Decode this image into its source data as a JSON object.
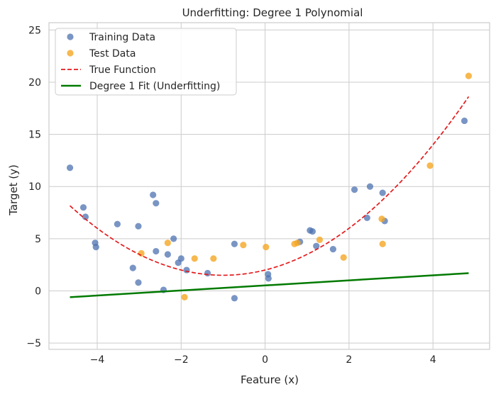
{
  "chart_data": {
    "type": "scatter",
    "title": "Underfitting: Degree 1 Polynomial",
    "xlabel": "Feature (x)",
    "ylabel": "Target (y)",
    "xlim": [
      -5.15,
      5.35
    ],
    "ylim": [
      -5.6,
      25.7
    ],
    "x_ticks": [
      -4,
      -2,
      0,
      2,
      4
    ],
    "y_ticks": [
      -5,
      0,
      5,
      10,
      15,
      20,
      25
    ],
    "grid": true,
    "legend_position": "top-left",
    "colors": {
      "training": "#4c72b0",
      "test": "#f5a623",
      "true_function": "#e41a1c",
      "fit": "#007a00",
      "grid": "#cccccc",
      "axes": "#cccccc"
    },
    "series": [
      {
        "name": "Training Data",
        "kind": "scatter",
        "points": [
          [
            -4.65,
            11.8
          ],
          [
            -4.33,
            8.0
          ],
          [
            -4.28,
            7.1
          ],
          [
            -4.05,
            4.6
          ],
          [
            -4.03,
            4.2
          ],
          [
            -3.52,
            6.4
          ],
          [
            -3.15,
            2.2
          ],
          [
            -3.02,
            6.2
          ],
          [
            -3.02,
            0.8
          ],
          [
            -2.67,
            9.2
          ],
          [
            -2.6,
            3.8
          ],
          [
            -2.6,
            8.4
          ],
          [
            -2.42,
            0.1
          ],
          [
            -2.32,
            3.5
          ],
          [
            -2.18,
            5.0
          ],
          [
            -2.07,
            2.7
          ],
          [
            -2.0,
            3.1
          ],
          [
            -1.87,
            2.0
          ],
          [
            -1.37,
            1.7
          ],
          [
            -0.73,
            4.5
          ],
          [
            -0.73,
            -0.7
          ],
          [
            0.07,
            1.6
          ],
          [
            0.08,
            1.2
          ],
          [
            1.07,
            5.8
          ],
          [
            1.13,
            5.7
          ],
          [
            0.83,
            4.7
          ],
          [
            1.22,
            4.3
          ],
          [
            1.62,
            4.0
          ],
          [
            2.13,
            9.7
          ],
          [
            2.43,
            7.0
          ],
          [
            2.5,
            10.0
          ],
          [
            2.8,
            9.4
          ],
          [
            2.85,
            6.7
          ],
          [
            4.75,
            16.3
          ]
        ]
      },
      {
        "name": "Test Data",
        "kind": "scatter",
        "points": [
          [
            -2.95,
            3.6
          ],
          [
            -2.32,
            4.6
          ],
          [
            -1.92,
            -0.6
          ],
          [
            -1.68,
            3.1
          ],
          [
            -1.23,
            3.1
          ],
          [
            -0.52,
            4.4
          ],
          [
            0.02,
            4.2
          ],
          [
            0.7,
            4.5
          ],
          [
            0.77,
            4.6
          ],
          [
            1.3,
            4.9
          ],
          [
            1.87,
            3.2
          ],
          [
            2.78,
            6.9
          ],
          [
            2.8,
            4.5
          ],
          [
            3.93,
            12.0
          ],
          [
            4.85,
            20.6
          ]
        ]
      },
      {
        "name": "True Function",
        "kind": "dashed-line",
        "equation": "y = 0.5x^2 + x + 2",
        "x_range": [
          -4.65,
          4.85
        ]
      },
      {
        "name": "Degree 1 Fit (Underfitting)",
        "kind": "line",
        "points": [
          [
            -4.65,
            -0.6
          ],
          [
            4.85,
            1.7
          ]
        ]
      }
    ]
  }
}
